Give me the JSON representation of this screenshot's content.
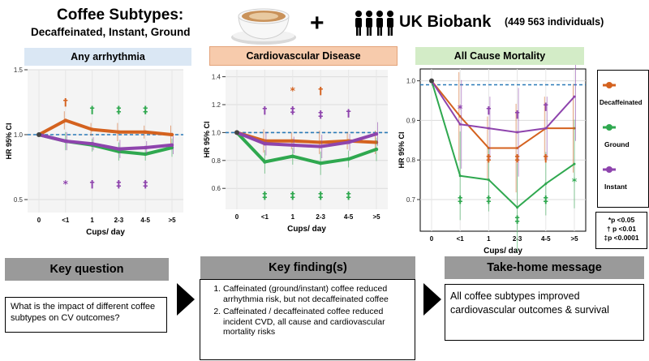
{
  "header": {
    "title": "Coffee Subtypes:",
    "subtitle": "Decaffeinated, Instant, Ground",
    "plus": "+",
    "biobank": "UK Biobank",
    "individuals": "(449 563 individuals)"
  },
  "colors": {
    "decaffeinated": "#d4621f",
    "ground": "#2fa84f",
    "instant": "#8e44ad",
    "reference_line": "#2a7ab8",
    "panel1_title_bg": "#dae7f4",
    "panel2_title_bg": "#f7cbac",
    "panel3_title_bg": "#d3ecc7"
  },
  "chart_data": [
    {
      "type": "line",
      "title": "Any arrhythmia",
      "xlabel": "Cups/ day",
      "ylabel": "HR 95% CI",
      "categories": [
        "0",
        "<1",
        "1",
        "2-3",
        "4-5",
        ">5"
      ],
      "ylim": [
        0.4,
        1.5
      ],
      "y_ticks": [
        "0.5",
        "1.0",
        "1.5"
      ],
      "reference_line": 1.0,
      "series": [
        {
          "name": "Decaffeinated",
          "values": [
            1.0,
            1.11,
            1.04,
            1.02,
            1.02,
            1.0
          ]
        },
        {
          "name": "Ground",
          "values": [
            1.0,
            0.95,
            0.92,
            0.87,
            0.85,
            0.9
          ]
        },
        {
          "name": "Instant",
          "values": [
            1.0,
            0.95,
            0.93,
            0.89,
            0.9,
            0.92
          ]
        }
      ],
      "annotations": [
        {
          "text": "†",
          "category": "<1",
          "y": 1.25,
          "series": "Decaffeinated"
        },
        {
          "text": "†",
          "category": "1",
          "y": 1.19,
          "series": "Ground"
        },
        {
          "text": "‡",
          "category": "2-3",
          "y": 1.19,
          "series": "Ground"
        },
        {
          "text": "‡",
          "category": "4-5",
          "y": 1.19,
          "series": "Ground"
        },
        {
          "text": "*",
          "category": "<1",
          "y": 0.62,
          "series": "Instant"
        },
        {
          "text": "†",
          "category": "1",
          "y": 0.62,
          "series": "Instant"
        },
        {
          "text": "‡",
          "category": "2-3",
          "y": 0.62,
          "series": "Instant"
        },
        {
          "text": "‡",
          "category": "4-5",
          "y": 0.62,
          "series": "Instant"
        }
      ]
    },
    {
      "type": "line",
      "title": "Cardiovascular Disease",
      "xlabel": "Cups/ day",
      "ylabel": "HR 95% CI",
      "categories": [
        "0",
        "<1",
        "1",
        "2-3",
        "4-5",
        ">5"
      ],
      "ylim": [
        0.45,
        1.45
      ],
      "y_ticks": [
        "0.6",
        "0.8",
        "1.0",
        "1.2",
        "1.4"
      ],
      "reference_line": 1.0,
      "series": [
        {
          "name": "Decaffeinated",
          "values": [
            1.0,
            0.94,
            0.94,
            0.93,
            0.94,
            0.93
          ]
        },
        {
          "name": "Ground",
          "values": [
            1.0,
            0.79,
            0.83,
            0.78,
            0.81,
            0.88
          ]
        },
        {
          "name": "Instant",
          "values": [
            1.0,
            0.92,
            0.91,
            0.9,
            0.93,
            0.99
          ]
        }
      ],
      "annotations": [
        {
          "text": "*",
          "category": "1",
          "y": 1.3,
          "series": "Decaffeinated"
        },
        {
          "text": "†",
          "category": "2-3",
          "y": 1.3,
          "series": "Decaffeinated"
        },
        {
          "text": "†",
          "category": "<1",
          "y": 1.16,
          "series": "Instant"
        },
        {
          "text": "‡",
          "category": "1",
          "y": 1.16,
          "series": "Instant"
        },
        {
          "text": "‡",
          "category": "2-3",
          "y": 1.13,
          "series": "Instant"
        },
        {
          "text": "†",
          "category": "4-5",
          "y": 1.14,
          "series": "Instant"
        },
        {
          "text": "‡",
          "category": "<1",
          "y": 0.55,
          "series": "Ground"
        },
        {
          "text": "‡",
          "category": "1",
          "y": 0.55,
          "series": "Ground"
        },
        {
          "text": "‡",
          "category": "2-3",
          "y": 0.55,
          "series": "Ground"
        },
        {
          "text": "‡",
          "category": "4-5",
          "y": 0.55,
          "series": "Ground"
        }
      ]
    },
    {
      "type": "line",
      "title": "All Cause Mortality",
      "xlabel": "Cups/ day",
      "ylabel": "HR 95% CI",
      "categories": [
        "0",
        "<1",
        "1",
        "2-3",
        "4-5",
        ">5"
      ],
      "ylim": [
        0.62,
        1.03
      ],
      "y_ticks": [
        "0.7",
        "0.8",
        "0.9",
        "1.0"
      ],
      "reference_line": 0.99,
      "series": [
        {
          "name": "Decaffeinated",
          "values": [
            1.0,
            0.91,
            0.83,
            0.83,
            0.88,
            0.88
          ]
        },
        {
          "name": "Ground",
          "values": [
            1.0,
            0.76,
            0.75,
            0.68,
            0.74,
            0.79
          ]
        },
        {
          "name": "Instant",
          "values": [
            1.0,
            0.89,
            0.88,
            0.87,
            0.88,
            0.96
          ]
        }
      ],
      "annotations": [
        {
          "text": "*",
          "category": "<1",
          "y": 0.93,
          "series": "Instant"
        },
        {
          "text": "†",
          "category": "1",
          "y": 0.925,
          "series": "Instant"
        },
        {
          "text": "†",
          "category": "2-3",
          "y": 0.915,
          "series": "Instant"
        },
        {
          "text": "†",
          "category": "4-5",
          "y": 0.935,
          "series": "Instant"
        },
        {
          "text": "‡",
          "category": "1",
          "y": 0.805,
          "series": "Decaffeinated"
        },
        {
          "text": "‡",
          "category": "2-3",
          "y": 0.805,
          "series": "Decaffeinated"
        },
        {
          "text": "†",
          "category": "4-5",
          "y": 0.805,
          "series": "Decaffeinated"
        },
        {
          "text": "*",
          "category": ">5",
          "y": 0.745,
          "series": "Ground"
        },
        {
          "text": "‡",
          "category": "<1",
          "y": 0.7,
          "series": "Ground"
        },
        {
          "text": "‡",
          "category": "1",
          "y": 0.7,
          "series": "Ground"
        },
        {
          "text": "‡",
          "category": "2-3",
          "y": 0.65,
          "series": "Ground"
        },
        {
          "text": "‡",
          "category": "4-5",
          "y": 0.7,
          "series": "Ground"
        }
      ]
    }
  ],
  "legend": [
    {
      "label": "Decaffeinated",
      "color": "#d4621f"
    },
    {
      "label": "Ground",
      "color": "#2fa84f"
    },
    {
      "label": "Instant",
      "color": "#8e44ad"
    }
  ],
  "pvalues": [
    "*p <0.05",
    "† p <0.01",
    "‡p <0.0001"
  ],
  "sections": {
    "key_question": {
      "heading": "Key question",
      "text": "What is the impact of different coffee subtypes on CV outcomes?"
    },
    "key_findings": {
      "heading": "Key finding(s)",
      "items": [
        "Caffeinated (ground/instant) coffee reduced arrhythmia risk, but not decaffeinated coffee",
        "Caffeinated / decaffeinated coffee reduced incident CVD, all cause and cardiovascular mortality risks"
      ]
    },
    "take_home": {
      "heading": "Take-home message",
      "text": "All coffee subtypes improved cardiovascular outcomes & survival"
    }
  }
}
